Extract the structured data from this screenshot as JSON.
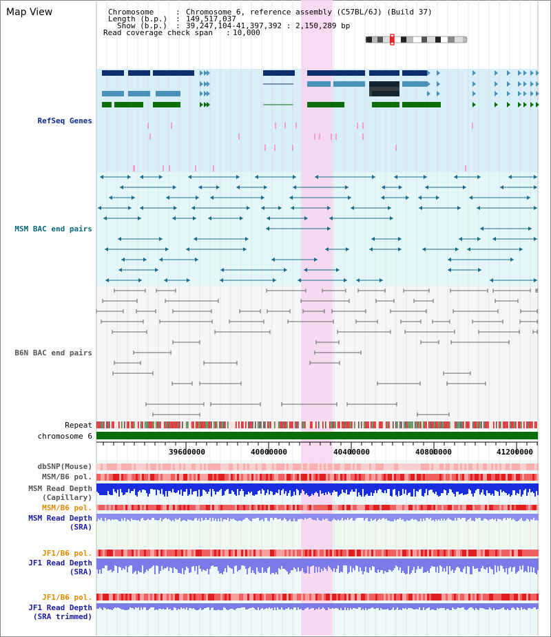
{
  "title": "Map View",
  "header": {
    "chromosome_label": "Chromosome",
    "chromosome_value": "Chromosome 6, reference assembly (C57BL/6J) (Build 37)",
    "length_label": "Length (b.p.)",
    "length_value": "149,517,037",
    "show_label": "Show (b.p.)",
    "show_value": "39,247,104-41,397,392 : 2,150,289 bp",
    "coverage_label": "Read coverage check span",
    "coverage_value": "10,000"
  },
  "tracks": {
    "refseq": "RefSeq Genes",
    "msm_bac": "MSM BAC end pairs",
    "b6n_bac": "B6N BAC end pairs",
    "repeat": "Repeat",
    "chromosome": "chromosome 6",
    "dbsnp": "dbSNP(Mouse)",
    "msm_b6_pol": "MSM/B6 pol.",
    "msm_depth_cap_1": "MSM Read Depth",
    "msm_depth_cap_2": "(Capillary)",
    "msm_b6_pol_2": "MSM/B6 pol.",
    "msm_depth_sra_1": "MSM Read Depth",
    "msm_depth_sra_2": "(SRA)",
    "jf1_b6_pol": "JF1/B6 pol.",
    "jf1_depth_sra_1": "JF1 Read Depth",
    "jf1_depth_sra_2": "(SRA)",
    "jf1_b6_pol_2": "JF1/B6 pol.",
    "jf1_depth_trim_1": "JF1 Read Depth",
    "jf1_depth_trim_2": "(SRA trimmed)"
  },
  "axis_ticks": [
    "39600000",
    "40000000",
    "40400000",
    "40800000",
    "41200000"
  ],
  "colors": {
    "refseq_bg": "#d8eef9",
    "msm_bg": "#e4f7f8",
    "b6n_bg": "#f4f6f8",
    "highlight": "#f7d4f0",
    "chromosome_bar": "#0a6e0a",
    "repeat_red": "#d62020",
    "gene_navy": "#0d2d6c",
    "gene_steel": "#4a92b8",
    "gene_green": "#0a6e0a",
    "msm_pair": "#1d6b88",
    "b6n_pair": "#666666"
  }
}
